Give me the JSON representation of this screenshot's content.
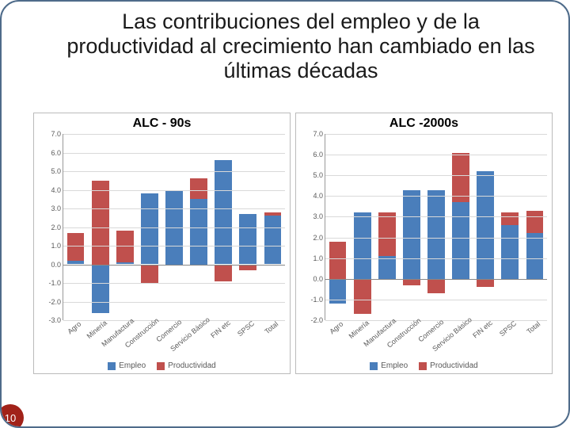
{
  "slide": {
    "title": "Las contribuciones del empleo y de la productividad al crecimiento han cambiado en  las últimas décadas",
    "page_number": "10",
    "border_color": "#4e6b8a",
    "border_radius": 24
  },
  "series_colors": {
    "empleo": "#4a7ebb",
    "productividad": "#c0504d"
  },
  "legend": [
    {
      "key": "empleo",
      "label": "Empleo"
    },
    {
      "key": "productividad",
      "label": "Productividad"
    }
  ],
  "chart_left": {
    "title": "ALC - 90s",
    "ymin": -3.0,
    "ymax": 7.0,
    "ytick_step": 1.0,
    "tick_decimals": 1,
    "grid_color": "#d9d9d9",
    "categories": [
      "Agro",
      "Minería",
      "Manufactura",
      "Construcción",
      "Comercio",
      "Servicio Básico",
      "FIN etc",
      "SPSC",
      "Total"
    ],
    "data": [
      {
        "empleo": 0.2,
        "productividad": 1.5
      },
      {
        "empleo": -2.6,
        "productividad": 4.5
      },
      {
        "empleo": 0.1,
        "productividad": 1.7
      },
      {
        "empleo": 3.8,
        "productividad": -1.0
      },
      {
        "empleo": 4.0,
        "productividad": 0.0
      },
      {
        "empleo": 3.5,
        "productividad": 1.1
      },
      {
        "empleo": 5.6,
        "productividad": -0.9
      },
      {
        "empleo": 2.7,
        "productividad": -0.3
      },
      {
        "empleo": 2.6,
        "productividad": 0.2
      }
    ]
  },
  "chart_right": {
    "title": "ALC -2000s",
    "ymin": -2.0,
    "ymax": 7.0,
    "ytick_step": 1.0,
    "tick_decimals": 1,
    "grid_color": "#d9d9d9",
    "categories": [
      "Agro",
      "Minería",
      "Manufactura",
      "Construcción",
      "Comercio",
      "Servicio Básico",
      "FIN etc",
      "SPSC",
      "Total"
    ],
    "data": [
      {
        "empleo": -1.2,
        "productividad": 1.8
      },
      {
        "empleo": 3.2,
        "productividad": -1.7
      },
      {
        "empleo": 1.1,
        "productividad": 2.1
      },
      {
        "empleo": 4.3,
        "productividad": -0.3
      },
      {
        "empleo": 4.3,
        "productividad": -0.7
      },
      {
        "empleo": 3.7,
        "productividad": 2.4
      },
      {
        "empleo": 5.2,
        "productividad": -0.4
      },
      {
        "empleo": 2.6,
        "productividad": 0.6
      },
      {
        "empleo": 2.2,
        "productividad": 1.1
      }
    ]
  }
}
